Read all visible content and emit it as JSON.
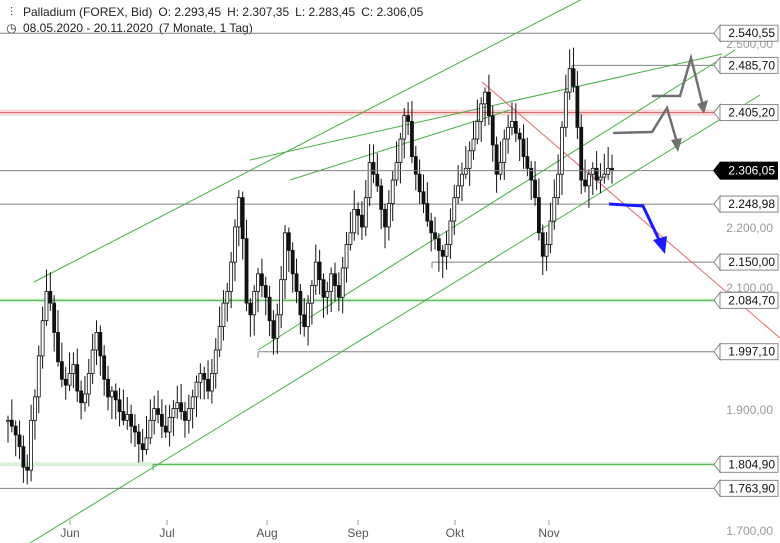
{
  "header": {
    "symbol": "Palladium (FOREX, Bid)",
    "open": "O: 2.293,45",
    "high": "H: 2.307,35",
    "low": "L: 2.283,45",
    "close": "C: 2.306,05",
    "range": "08.05.2020 - 20.11.2020",
    "period": "(7 Monate, 1 Tag)"
  },
  "chart_data": {
    "type": "candlestick",
    "title": "Palladium (FOREX, Bid)",
    "x_labels": [
      "Jun",
      "Jul",
      "Aug",
      "Sep",
      "Okt",
      "Nov"
    ],
    "x_range": [
      "2020-05-08",
      "2020-11-20"
    ],
    "y_range": [
      1700,
      2560
    ],
    "y_ticks": [
      "1.900,00",
      "2.100,00",
      "2.200,00",
      "2.500,00",
      "1.700,00"
    ],
    "grid": false,
    "current_price": "2.306,05",
    "horizontal_levels": [
      {
        "label": "2.540,55",
        "value": 2540.55,
        "color": "#808080"
      },
      {
        "label": "2.485,70",
        "value": 2485.7,
        "color": "#808080"
      },
      {
        "label": "2.405,20",
        "value": 2405.2,
        "color": "#e06a6a"
      },
      {
        "label": "2.248,98",
        "value": 2248.98,
        "color": "#808080"
      },
      {
        "label": "2.150,00",
        "value": 2150.0,
        "color": "#808080"
      },
      {
        "label": "2.084,70",
        "value": 2084.7,
        "color": "#44b044"
      },
      {
        "label": "1.997,10",
        "value": 1997.1,
        "color": "#808080"
      },
      {
        "label": "1.804,90",
        "value": 1804.9,
        "color": "#44b044"
      },
      {
        "label": "1.763,90",
        "value": 1763.9,
        "color": "#808080"
      }
    ],
    "candles_approx_close": [
      1880,
      1870,
      1855,
      1835,
      1800,
      1795,
      1880,
      1920,
      1990,
      2050,
      2100,
      2080,
      2030,
      1980,
      1950,
      1940,
      1960,
      1975,
      1930,
      1910,
      1925,
      1960,
      2000,
      2030,
      1990,
      1950,
      1920,
      1930,
      1915,
      1895,
      1880,
      1890,
      1870,
      1860,
      1840,
      1830,
      1850,
      1880,
      1900,
      1890,
      1870,
      1860,
      1885,
      1900,
      1910,
      1895,
      1880,
      1900,
      1920,
      1945,
      1960,
      1950,
      1930,
      1960,
      2000,
      2040,
      2080,
      2100,
      2150,
      2210,
      2260,
      2190,
      2080,
      2060,
      2100,
      2130,
      2110,
      2090,
      2050,
      2020,
      2060,
      2120,
      2200,
      2170,
      2130,
      2100,
      2060,
      2040,
      2080,
      2110,
      2150,
      2120,
      2090,
      2100,
      2130,
      2110,
      2090,
      2140,
      2180,
      2200,
      2240,
      2230,
      2210,
      2260,
      2320,
      2300,
      2280,
      2240,
      2210,
      2250,
      2290,
      2320,
      2360,
      2400,
      2390,
      2330,
      2300,
      2270,
      2250,
      2220,
      2200,
      2190,
      2170,
      2160,
      2180,
      2220,
      2260,
      2280,
      2300,
      2310,
      2340,
      2360,
      2390,
      2420,
      2440,
      2400,
      2350,
      2300,
      2320,
      2360,
      2380,
      2390,
      2370,
      2360,
      2330,
      2310,
      2290,
      2260,
      2200,
      2160,
      2180,
      2220,
      2260,
      2300,
      2380,
      2440,
      2480,
      2450,
      2380,
      2290,
      2280,
      2300,
      2310,
      2290,
      2295,
      2300,
      2310,
      2306
    ],
    "annotations": [
      {
        "type": "trend-channel",
        "color": "#44b044"
      },
      {
        "type": "downtrend-line",
        "color": "#e06a6a"
      },
      {
        "type": "projection-arrow",
        "color": "#707070"
      },
      {
        "type": "projection-arrow",
        "color": "#707070"
      },
      {
        "type": "projection-arrow",
        "color": "#1a1aff"
      }
    ]
  },
  "colors": {
    "candle": "#111111",
    "green_line": "#44b044",
    "red_line": "#e06a6a",
    "gray_line": "#808080",
    "arrow_gray": "#707070",
    "arrow_blue": "#1a1aff",
    "price_box": "#000000"
  }
}
